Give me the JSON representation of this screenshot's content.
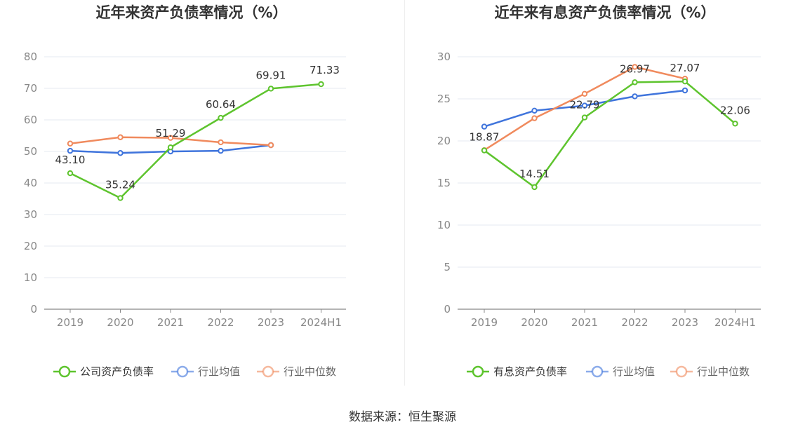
{
  "chart_data": [
    {
      "type": "line",
      "title": "近年来资产负债率情况（%）",
      "categories": [
        "2019",
        "2020",
        "2021",
        "2022",
        "2023",
        "2024H1"
      ],
      "yticks": [
        "0",
        "10",
        "20",
        "30",
        "40",
        "50",
        "60",
        "70",
        "80"
      ],
      "ylim": [
        0,
        80
      ],
      "grid": true,
      "legend_position": "bottom",
      "series": [
        {
          "name": "公司资产负债率",
          "color": "#5ec42e",
          "values": [
            43.1,
            35.24,
            51.29,
            60.64,
            69.91,
            71.33
          ],
          "labels": [
            "43.10",
            "35.24",
            "51.29",
            "60.64",
            "69.91",
            "71.33"
          ]
        },
        {
          "name": "行业均值",
          "color": "#3f74dc",
          "values": [
            50.2,
            49.5,
            50.0,
            50.2,
            52.0,
            null
          ]
        },
        {
          "name": "行业中位数",
          "color": "#f08a5d",
          "values": [
            52.5,
            54.5,
            54.3,
            52.9,
            52.0,
            null
          ]
        }
      ]
    },
    {
      "type": "line",
      "title": "近年来有息资产负债率情况（%）",
      "categories": [
        "2019",
        "2020",
        "2021",
        "2022",
        "2023",
        "2024H1"
      ],
      "yticks": [
        "0",
        "5",
        "10",
        "15",
        "20",
        "25",
        "30"
      ],
      "ylim": [
        0,
        30
      ],
      "grid": true,
      "legend_position": "bottom",
      "series": [
        {
          "name": "有息资产负债率",
          "color": "#5ec42e",
          "values": [
            18.87,
            14.51,
            22.79,
            26.97,
            27.07,
            22.06
          ],
          "labels": [
            "18.87",
            "14.51",
            "22.79",
            "26.97",
            "27.07",
            "22.06"
          ]
        },
        {
          "name": "行业均值",
          "color": "#3f74dc",
          "values": [
            21.7,
            23.6,
            24.2,
            25.3,
            26.0,
            null
          ]
        },
        {
          "name": "行业中位数",
          "color": "#f08a5d",
          "values": [
            18.9,
            22.7,
            25.6,
            28.8,
            27.4,
            null
          ]
        }
      ]
    }
  ],
  "footer": {
    "source": "数据来源：恒生聚源"
  }
}
